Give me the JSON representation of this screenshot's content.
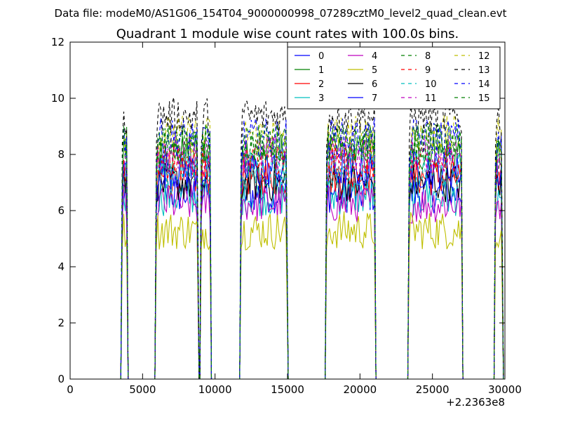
{
  "suptitle": "Data file: modeM0/AS1G06_154T04_9000000998_07289cztM0_level2_quad_clean.evt",
  "chart_data": {
    "type": "line",
    "title": "Quadrant 1 module wise count rates with 100.0s bins.",
    "xlabel": "",
    "ylabel": "",
    "x_offset_label": "+2.2363e8",
    "xlim": [
      0,
      30000
    ],
    "ylim": [
      0,
      12
    ],
    "x_ticks": [
      "0",
      "5000",
      "10000",
      "15000",
      "20000",
      "25000",
      "30000"
    ],
    "y_ticks": [
      "0",
      "2",
      "4",
      "6",
      "8",
      "10",
      "12"
    ],
    "grid": false,
    "legend_position": "top-right",
    "bin_size_s": 100,
    "segments": [
      [
        3600,
        3900
      ],
      [
        5950,
        8800
      ],
      [
        9050,
        9650
      ],
      [
        11800,
        14950
      ],
      [
        17700,
        21000
      ],
      [
        23400,
        27000
      ],
      [
        29350,
        29800
      ]
    ],
    "series": [
      {
        "name": "0",
        "level": 6.6,
        "color": "#0000ff",
        "dash": "solid"
      },
      {
        "name": "1",
        "level": 8.0,
        "color": "#008000",
        "dash": "solid"
      },
      {
        "name": "2",
        "level": 7.1,
        "color": "#ff0000",
        "dash": "solid"
      },
      {
        "name": "3",
        "level": 6.5,
        "color": "#00bfbf",
        "dash": "solid"
      },
      {
        "name": "4",
        "level": 6.2,
        "color": "#bf00bf",
        "dash": "solid"
      },
      {
        "name": "5",
        "level": 5.2,
        "color": "#bfbf00",
        "dash": "solid"
      },
      {
        "name": "6",
        "level": 7.0,
        "color": "#000000",
        "dash": "solid"
      },
      {
        "name": "7",
        "level": 7.4,
        "color": "#0000ff",
        "dash": "solid"
      },
      {
        "name": "8",
        "level": 8.3,
        "color": "#008000",
        "dash": "dashed"
      },
      {
        "name": "9",
        "level": 7.7,
        "color": "#ff0000",
        "dash": "dashed"
      },
      {
        "name": "10",
        "level": 7.4,
        "color": "#00bfbf",
        "dash": "dashed"
      },
      {
        "name": "11",
        "level": 7.9,
        "color": "#bf00bf",
        "dash": "dashed"
      },
      {
        "name": "12",
        "level": 8.7,
        "color": "#bfbf00",
        "dash": "dashed"
      },
      {
        "name": "13",
        "level": 9.3,
        "color": "#000000",
        "dash": "dashed"
      },
      {
        "name": "14",
        "level": 8.5,
        "color": "#0000ff",
        "dash": "dashed"
      },
      {
        "name": "15",
        "level": 8.4,
        "color": "#008000",
        "dash": "dashed"
      }
    ]
  }
}
